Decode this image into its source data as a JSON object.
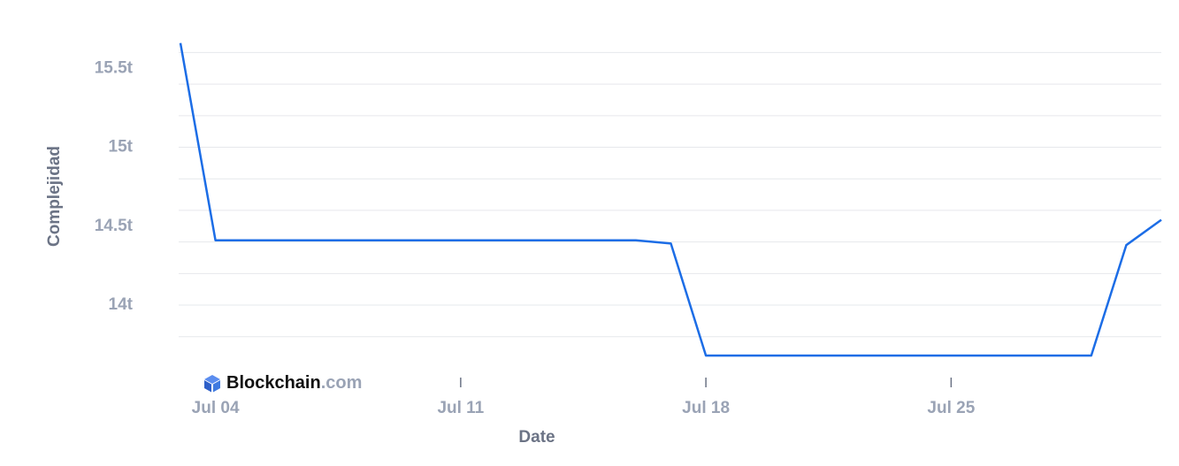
{
  "chart_data": {
    "type": "line",
    "x_label": "Date",
    "y_label": "Complejidad",
    "x": [
      "Jul 03",
      "Jul 04",
      "Jul 05",
      "Jul 06",
      "Jul 07",
      "Jul 08",
      "Jul 09",
      "Jul 10",
      "Jul 11",
      "Jul 12",
      "Jul 13",
      "Jul 14",
      "Jul 15",
      "Jul 16",
      "Jul 17",
      "Jul 18",
      "Jul 19",
      "Jul 20",
      "Jul 21",
      "Jul 22",
      "Jul 23",
      "Jul 24",
      "Jul 25",
      "Jul 26",
      "Jul 27",
      "Jul 28",
      "Jul 29",
      "Jul 30",
      "Jul 31"
    ],
    "series": [
      {
        "color": "#1c6de6",
        "values": [
          15.66,
          14.41,
          14.41,
          14.41,
          14.41,
          14.41,
          14.41,
          14.41,
          14.41,
          14.41,
          14.41,
          14.41,
          14.41,
          14.41,
          14.39,
          13.68,
          13.68,
          13.68,
          13.68,
          13.68,
          13.68,
          13.68,
          13.68,
          13.68,
          13.68,
          13.68,
          13.68,
          14.38,
          14.54
        ]
      }
    ],
    "xlim": [
      "Jul 03",
      "Jul 31"
    ],
    "xticks": [
      "Jul 04",
      "Jul 11",
      "Jul 18",
      "Jul 25"
    ],
    "ylim": [
      13.58,
      15.72
    ],
    "yticks": [
      {
        "value": 14,
        "label": "14t"
      },
      {
        "value": 14.5,
        "label": "14.5t"
      },
      {
        "value": 15,
        "label": "15t"
      },
      {
        "value": 15.5,
        "label": "15.5t"
      }
    ],
    "ygrid": [
      13.8,
      14.0,
      14.2,
      14.4,
      14.6,
      14.8,
      15.0,
      15.2,
      15.4,
      15.6
    ],
    "grid": true,
    "brand": {
      "name": "Blockchain",
      "suffix": ".com"
    }
  }
}
